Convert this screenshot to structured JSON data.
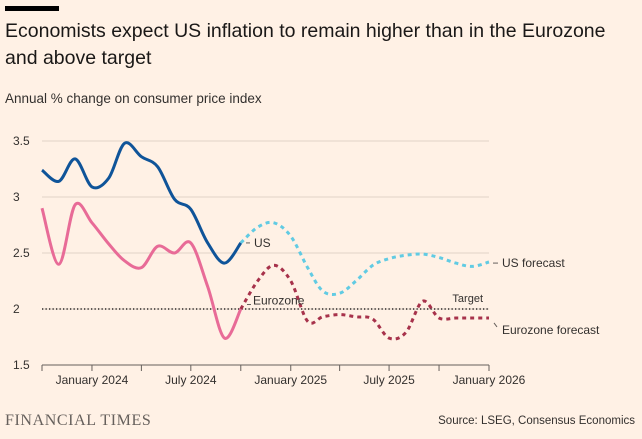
{
  "header": {
    "title": "Economists expect US inflation to remain higher than in the Eurozone and above target",
    "subtitle": "Annual % change on consumer price index"
  },
  "footer": {
    "logo": "FINANCIAL TIMES",
    "source": "Source: LSEG, Consensus Economics"
  },
  "colors": {
    "background": "#fff1e5",
    "us": "#0f5499",
    "eurozone": "#e86b97",
    "us_forecast": "#61cbe3",
    "eurozone_forecast": "#a7324b",
    "target": "#000000",
    "grid": "#e0d3c8"
  },
  "chart_data": {
    "type": "line",
    "title": "Economists expect US inflation to remain higher than in the Eurozone and above target",
    "ylabel": "Annual % change on consumer price index",
    "ylim": [
      1.5,
      3.5
    ],
    "yticks": [
      1.5,
      2,
      2.5,
      3,
      3.5
    ],
    "ytick_labels": [
      "1.5",
      "2",
      "2.5",
      "3",
      "3.5"
    ],
    "xlim": [
      "2023-10-01",
      "2026-01-01"
    ],
    "xticks": [
      "2024-01-01",
      "2024-04-01",
      "2024-07-01",
      "2024-10-01",
      "2025-01-01",
      "2025-04-01",
      "2025-07-01",
      "2025-10-01",
      "2026-01-01"
    ],
    "xtick_labels": [
      "January 2024",
      "July 2024",
      "January 2025",
      "July 2025",
      "January 2026"
    ],
    "xtick_label_dates": [
      "2024-01-01",
      "2024-07-01",
      "2025-01-01",
      "2025-07-01",
      "2026-01-01"
    ],
    "grid": true,
    "series": [
      {
        "name": "US",
        "style": "solid",
        "x": [
          "2023-10-01",
          "2023-11-01",
          "2023-12-01",
          "2024-01-01",
          "2024-02-01",
          "2024-03-01",
          "2024-04-01",
          "2024-05-01",
          "2024-06-01",
          "2024-07-01",
          "2024-08-01",
          "2024-09-01",
          "2024-10-01"
        ],
        "values": [
          3.24,
          3.14,
          3.34,
          3.09,
          3.17,
          3.48,
          3.36,
          3.27,
          2.98,
          2.89,
          2.59,
          2.41,
          2.59
        ]
      },
      {
        "name": "Eurozone",
        "style": "solid",
        "x": [
          "2023-10-01",
          "2023-11-01",
          "2023-12-01",
          "2024-01-01",
          "2024-02-01",
          "2024-03-01",
          "2024-04-01",
          "2024-05-01",
          "2024-06-01",
          "2024-07-01",
          "2024-08-01",
          "2024-09-01",
          "2024-10-01"
        ],
        "values": [
          2.9,
          2.4,
          2.93,
          2.77,
          2.58,
          2.43,
          2.37,
          2.56,
          2.5,
          2.59,
          2.2,
          1.74,
          2.0
        ]
      },
      {
        "name": "US forecast",
        "style": "dashed",
        "x": [
          "2024-10-01",
          "2024-11-01",
          "2024-12-01",
          "2025-01-01",
          "2025-02-01",
          "2025-03-01",
          "2025-04-01",
          "2025-05-01",
          "2025-06-01",
          "2025-07-01",
          "2025-08-01",
          "2025-09-01",
          "2025-10-01",
          "2025-11-01",
          "2025-12-01",
          "2026-01-01"
        ],
        "values": [
          2.59,
          2.73,
          2.77,
          2.65,
          2.37,
          2.16,
          2.14,
          2.25,
          2.39,
          2.45,
          2.48,
          2.49,
          2.46,
          2.41,
          2.38,
          2.42
        ]
      },
      {
        "name": "Eurozone forecast",
        "style": "dashed",
        "x": [
          "2024-10-01",
          "2024-11-01",
          "2024-12-01",
          "2025-01-01",
          "2025-02-01",
          "2025-03-01",
          "2025-04-01",
          "2025-05-01",
          "2025-06-01",
          "2025-07-01",
          "2025-08-01",
          "2025-09-01",
          "2025-10-01",
          "2025-11-01",
          "2025-12-01",
          "2026-01-01"
        ],
        "values": [
          2.0,
          2.25,
          2.39,
          2.25,
          1.89,
          1.93,
          1.95,
          1.93,
          1.91,
          1.74,
          1.79,
          2.07,
          1.92,
          1.92,
          1.92,
          1.92
        ]
      }
    ],
    "reference_lines": [
      {
        "name": "Target",
        "value": 2.0,
        "style": "dotted"
      }
    ],
    "annotations": [
      {
        "text": "US",
        "series": "US"
      },
      {
        "text": "Eurozone",
        "series": "Eurozone"
      },
      {
        "text": "US forecast",
        "series": "US forecast"
      },
      {
        "text": "Eurozone forecast",
        "series": "Eurozone forecast"
      },
      {
        "text": "Target",
        "series": "Target"
      }
    ]
  }
}
